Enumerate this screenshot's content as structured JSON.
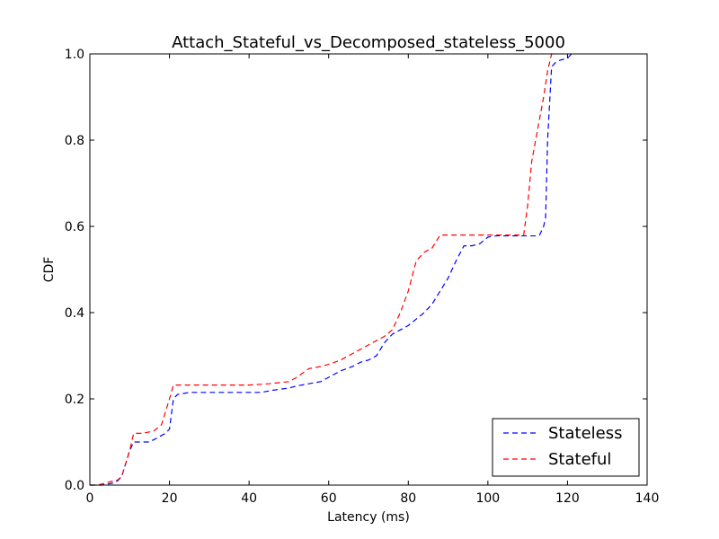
{
  "chart_data": {
    "type": "line",
    "title": "Attach_Stateful_vs_Decomposed_stateless_5000",
    "xlabel": "Latency (ms)",
    "ylabel": "CDF",
    "xlim": [
      0,
      140
    ],
    "ylim": [
      0,
      1.0
    ],
    "xticks": [
      "0",
      "20",
      "40",
      "60",
      "80",
      "100",
      "120",
      "140"
    ],
    "yticks": [
      "0.0",
      "0.2",
      "0.4",
      "0.6",
      "0.8",
      "1.0"
    ],
    "grid": false,
    "legend_position": "lower-right",
    "series": [
      {
        "name": "Stateless",
        "color": "#0000ff",
        "style": "dashed",
        "x": [
          0,
          3,
          6,
          7,
          8,
          9,
          10,
          11,
          13,
          15,
          17,
          19,
          20,
          21,
          22,
          25,
          30,
          35,
          40,
          43,
          46,
          50,
          52,
          55,
          58,
          60,
          63,
          66,
          68,
          70,
          72,
          74,
          76,
          78,
          80,
          82,
          84,
          86,
          88,
          90,
          92,
          94,
          96,
          98,
          100,
          102,
          105,
          108,
          110,
          112,
          113,
          114,
          114.5,
          115,
          116,
          117,
          118,
          120,
          121
        ],
        "y": [
          0,
          0,
          0.005,
          0.01,
          0.02,
          0.05,
          0.08,
          0.1,
          0.1,
          0.1,
          0.11,
          0.12,
          0.13,
          0.2,
          0.21,
          0.215,
          0.215,
          0.215,
          0.215,
          0.215,
          0.22,
          0.225,
          0.23,
          0.235,
          0.24,
          0.25,
          0.265,
          0.275,
          0.285,
          0.29,
          0.3,
          0.33,
          0.35,
          0.36,
          0.37,
          0.385,
          0.4,
          0.42,
          0.45,
          0.48,
          0.52,
          0.555,
          0.555,
          0.56,
          0.575,
          0.578,
          0.578,
          0.578,
          0.578,
          0.578,
          0.58,
          0.6,
          0.62,
          0.8,
          0.97,
          0.98,
          0.985,
          0.99,
          1.0
        ]
      },
      {
        "name": "Stateful",
        "color": "#ff0000",
        "style": "dashed",
        "x": [
          0,
          2,
          4,
          6,
          7,
          8,
          9,
          10,
          11,
          13,
          16,
          18,
          20,
          21,
          22,
          25,
          30,
          35,
          40,
          45,
          50,
          52,
          55,
          58,
          60,
          63,
          66,
          68,
          70,
          72,
          74,
          76,
          78,
          80,
          82,
          84,
          86,
          88,
          90,
          92,
          94,
          96,
          98,
          100,
          102,
          104,
          106,
          108,
          109,
          110,
          111,
          112,
          113,
          114,
          115,
          116,
          117
        ],
        "y": [
          0,
          0,
          0.005,
          0.01,
          0.012,
          0.02,
          0.05,
          0.08,
          0.12,
          0.12,
          0.125,
          0.14,
          0.2,
          0.232,
          0.232,
          0.232,
          0.232,
          0.232,
          0.232,
          0.235,
          0.24,
          0.25,
          0.27,
          0.275,
          0.28,
          0.29,
          0.305,
          0.315,
          0.325,
          0.335,
          0.345,
          0.36,
          0.4,
          0.45,
          0.52,
          0.54,
          0.55,
          0.58,
          0.58,
          0.58,
          0.58,
          0.58,
          0.58,
          0.58,
          0.58,
          0.58,
          0.58,
          0.58,
          0.58,
          0.65,
          0.75,
          0.8,
          0.85,
          0.9,
          0.96,
          1.0,
          1.0
        ]
      }
    ]
  }
}
